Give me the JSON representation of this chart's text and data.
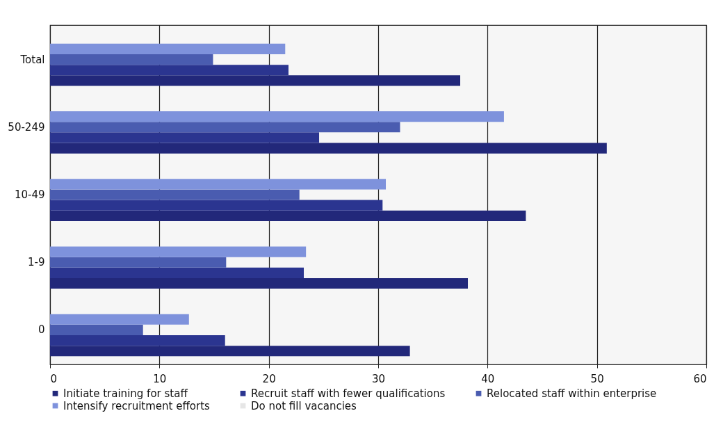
{
  "chart_data": {
    "type": "bar",
    "orientation": "horizontal",
    "categories": [
      "Total",
      "50-249",
      "10-49",
      "1-9",
      "0"
    ],
    "series": [
      {
        "name": "Initiate training for staff",
        "color": "#22287a",
        "values": [
          37.5,
          50.9,
          43.5,
          38.2,
          32.9
        ]
      },
      {
        "name": "Recruit staff with fewer qualifications",
        "color": "#2b3590",
        "values": [
          21.8,
          24.6,
          30.4,
          23.2,
          16.0
        ]
      },
      {
        "name": "Relocated staff within enterprise",
        "color": "#4a5cb0",
        "values": [
          14.9,
          32.0,
          22.8,
          16.1,
          8.5
        ]
      },
      {
        "name": "Intensify recruitment efforts",
        "color": "#7e92dc",
        "values": [
          21.5,
          41.5,
          30.7,
          23.4,
          12.7
        ]
      },
      {
        "name": "Do not fill vacancies",
        "color": "#e6e6e6",
        "values": [
          null,
          null,
          null,
          null,
          null
        ]
      }
    ],
    "xlim": [
      0,
      60
    ],
    "xticks": [
      0,
      10,
      20,
      30,
      40,
      50,
      60
    ],
    "grid": "x",
    "legend": "bottom"
  }
}
